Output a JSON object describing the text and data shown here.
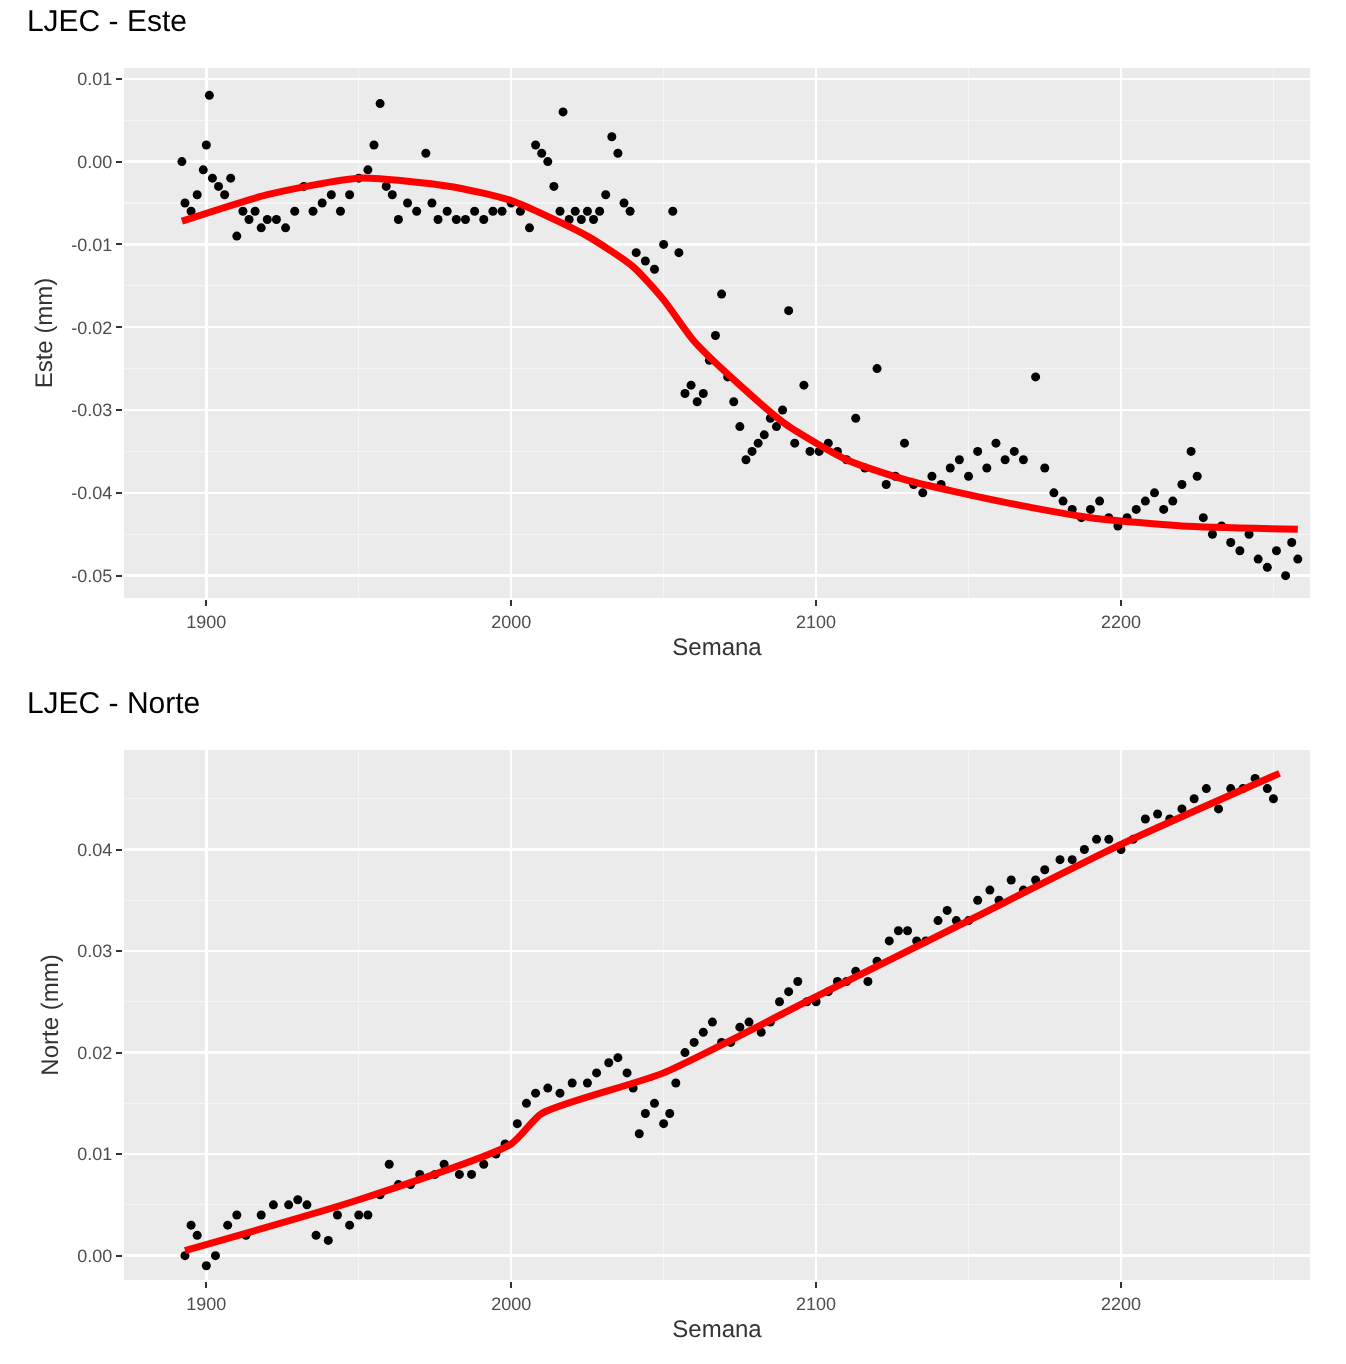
{
  "chart_data": [
    {
      "type": "scatter",
      "title": "LJEC - Este",
      "xlabel": "Semana",
      "ylabel": "Este (mm)",
      "xlim": [
        1873,
        2262
      ],
      "xticks": [
        1900,
        2000,
        2100,
        2200
      ],
      "ylim": [
        -0.0527,
        0.0113
      ],
      "yticks": [
        0.01,
        {
          "value": 0,
          "label": "0.00"
        },
        -0.01,
        -0.02,
        -0.03,
        -0.04,
        -0.05
      ],
      "grid": true,
      "legend": false,
      "series": [
        {
          "marker": "circle",
          "color": "#000000",
          "x": [
            1892,
            1893,
            1895,
            1897,
            1899,
            1900,
            1901,
            1902,
            1904,
            1906,
            1908,
            1910,
            1912,
            1914,
            1916,
            1918,
            1920,
            1923,
            1926,
            1929,
            1932,
            1935,
            1938,
            1941,
            1944,
            1947,
            1950,
            1953,
            1955,
            1957,
            1959,
            1961,
            1963,
            1966,
            1969,
            1972,
            1974,
            1976,
            1979,
            1982,
            1985,
            1988,
            1991,
            1994,
            1997,
            2000,
            2003,
            2006,
            2008,
            2010,
            2012,
            2014,
            2016,
            2017,
            2019,
            2021,
            2023,
            2025,
            2027,
            2029,
            2031,
            2033,
            2035,
            2037,
            2039,
            2041,
            2044,
            2047,
            2050,
            2053,
            2055,
            2057,
            2059,
            2061,
            2063,
            2065,
            2067,
            2069,
            2071,
            2073,
            2075,
            2077,
            2079,
            2081,
            2083,
            2085,
            2087,
            2089,
            2091,
            2093,
            2096,
            2098,
            2101,
            2104,
            2107,
            2110,
            2113,
            2116,
            2120,
            2123,
            2126,
            2129,
            2132,
            2135,
            2138,
            2141,
            2144,
            2147,
            2150,
            2153,
            2156,
            2159,
            2162,
            2165,
            2168,
            2172,
            2175,
            2178,
            2181,
            2184,
            2187,
            2190,
            2193,
            2196,
            2199,
            2202,
            2205,
            2208,
            2211,
            2214,
            2217,
            2220,
            2223,
            2225,
            2227,
            2230,
            2233,
            2236,
            2239,
            2242,
            2245,
            2248,
            2251,
            2254,
            2256,
            2258
          ],
          "values": [
            0.0,
            -0.005,
            -0.006,
            -0.004,
            -0.001,
            0.002,
            0.008,
            -0.002,
            -0.003,
            -0.004,
            -0.002,
            -0.009,
            -0.006,
            -0.007,
            -0.006,
            -0.008,
            -0.007,
            -0.007,
            -0.008,
            -0.006,
            -0.003,
            -0.006,
            -0.005,
            -0.004,
            -0.006,
            -0.004,
            -0.002,
            -0.001,
            0.002,
            0.007,
            -0.003,
            -0.004,
            -0.007,
            -0.005,
            -0.006,
            0.001,
            -0.005,
            -0.007,
            -0.006,
            -0.007,
            -0.007,
            -0.006,
            -0.007,
            -0.006,
            -0.006,
            -0.005,
            -0.006,
            -0.008,
            0.002,
            0.001,
            0.0,
            -0.003,
            -0.006,
            0.006,
            -0.007,
            -0.006,
            -0.007,
            -0.006,
            -0.007,
            -0.006,
            -0.004,
            0.003,
            0.001,
            -0.005,
            -0.006,
            -0.011,
            -0.012,
            -0.013,
            -0.01,
            -0.006,
            -0.011,
            -0.028,
            -0.027,
            -0.029,
            -0.028,
            -0.024,
            -0.021,
            -0.016,
            -0.026,
            -0.029,
            -0.032,
            -0.036,
            -0.035,
            -0.034,
            -0.033,
            -0.031,
            -0.032,
            -0.03,
            -0.018,
            -0.034,
            -0.027,
            -0.035,
            -0.035,
            -0.034,
            -0.035,
            -0.036,
            -0.031,
            -0.037,
            -0.025,
            -0.039,
            -0.038,
            -0.034,
            -0.039,
            -0.04,
            -0.038,
            -0.039,
            -0.037,
            -0.036,
            -0.038,
            -0.035,
            -0.037,
            -0.034,
            -0.036,
            -0.035,
            -0.036,
            -0.026,
            -0.037,
            -0.04,
            -0.041,
            -0.042,
            -0.043,
            -0.042,
            -0.041,
            -0.043,
            -0.044,
            -0.043,
            -0.042,
            -0.041,
            -0.04,
            -0.042,
            -0.041,
            -0.039,
            -0.035,
            -0.038,
            -0.043,
            -0.045,
            -0.044,
            -0.046,
            -0.047,
            -0.045,
            -0.048,
            -0.049,
            -0.047,
            -0.05,
            -0.046,
            -0.048
          ]
        },
        {
          "type": "line",
          "color": "#ff0000",
          "x": [
            1892,
            1920,
            1950,
            1980,
            2000,
            2025,
            2040,
            2050,
            2060,
            2075,
            2090,
            2110,
            2130,
            2160,
            2190,
            2220,
            2258
          ],
          "values": [
            -0.0072,
            -0.004,
            -0.002,
            -0.003,
            -0.0047,
            -0.009,
            -0.0127,
            -0.0167,
            -0.0217,
            -0.027,
            -0.0317,
            -0.036,
            -0.0385,
            -0.041,
            -0.043,
            -0.044,
            -0.0444
          ]
        }
      ]
    },
    {
      "type": "scatter",
      "title": "LJEC - Norte",
      "xlabel": "Semana",
      "ylabel": "Norte (mm)",
      "xlim": [
        1873,
        2262
      ],
      "xticks": [
        1900,
        2000,
        2100,
        2200
      ],
      "ylim": [
        -0.0024,
        0.0498
      ],
      "yticks": [
        {
          "value": 0,
          "label": "0.00"
        },
        0.01,
        0.02,
        0.03,
        0.04
      ],
      "grid": true,
      "legend": false,
      "series": [
        {
          "marker": "circle",
          "color": "#000000",
          "x": [
            1893,
            1895,
            1897,
            1900,
            1903,
            1907,
            1910,
            1913,
            1918,
            1922,
            1927,
            1930,
            1933,
            1936,
            1940,
            1943,
            1947,
            1950,
            1953,
            1957,
            1960,
            1963,
            1967,
            1970,
            1975,
            1978,
            1983,
            1987,
            1991,
            1995,
            1998,
            2002,
            2005,
            2008,
            2012,
            2016,
            2020,
            2025,
            2028,
            2032,
            2035,
            2038,
            2040,
            2042,
            2044,
            2047,
            2050,
            2052,
            2054,
            2057,
            2060,
            2063,
            2066,
            2069,
            2072,
            2075,
            2078,
            2082,
            2085,
            2088,
            2091,
            2094,
            2097,
            2100,
            2104,
            2107,
            2110,
            2113,
            2117,
            2120,
            2124,
            2127,
            2130,
            2133,
            2136,
            2140,
            2143,
            2146,
            2150,
            2153,
            2157,
            2160,
            2164,
            2168,
            2172,
            2175,
            2180,
            2184,
            2188,
            2192,
            2196,
            2200,
            2204,
            2208,
            2212,
            2216,
            2220,
            2224,
            2228,
            2232,
            2236,
            2240,
            2244,
            2248,
            2250
          ],
          "values": [
            0.0,
            0.003,
            0.002,
            -0.001,
            0.0,
            0.003,
            0.004,
            0.002,
            0.004,
            0.005,
            0.005,
            0.0055,
            0.005,
            0.002,
            0.0015,
            0.004,
            0.003,
            0.004,
            0.004,
            0.006,
            0.009,
            0.007,
            0.007,
            0.008,
            0.008,
            0.009,
            0.008,
            0.008,
            0.009,
            0.01,
            0.011,
            0.013,
            0.015,
            0.016,
            0.0165,
            0.016,
            0.017,
            0.017,
            0.018,
            0.019,
            0.0195,
            0.018,
            0.0165,
            0.012,
            0.014,
            0.015,
            0.013,
            0.014,
            0.017,
            0.02,
            0.021,
            0.022,
            0.023,
            0.021,
            0.021,
            0.0225,
            0.023,
            0.022,
            0.023,
            0.025,
            0.026,
            0.027,
            0.025,
            0.025,
            0.026,
            0.027,
            0.027,
            0.028,
            0.027,
            0.029,
            0.031,
            0.032,
            0.032,
            0.031,
            0.031,
            0.033,
            0.034,
            0.033,
            0.033,
            0.035,
            0.036,
            0.035,
            0.037,
            0.036,
            0.037,
            0.038,
            0.039,
            0.039,
            0.04,
            0.041,
            0.041,
            0.04,
            0.041,
            0.043,
            0.0435,
            0.043,
            0.044,
            0.045,
            0.046,
            0.044,
            0.046,
            0.046,
            0.047,
            0.046,
            0.045
          ]
        },
        {
          "type": "line",
          "color": "#ff0000",
          "x": [
            1893,
            1950,
            2000,
            2010,
            2050,
            2100,
            2150,
            2200,
            2252
          ],
          "values": [
            0.0005,
            0.0055,
            0.011,
            0.014,
            0.018,
            0.0255,
            0.033,
            0.0405,
            0.0475
          ]
        }
      ]
    }
  ]
}
